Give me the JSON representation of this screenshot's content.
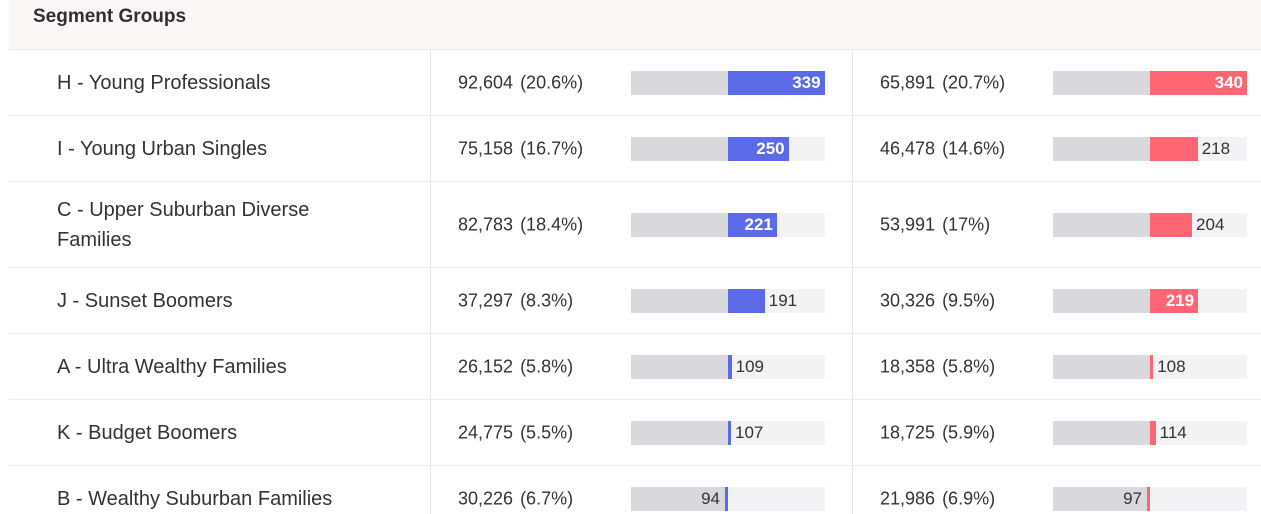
{
  "header": {
    "title": "Segment Groups"
  },
  "colors": {
    "series_a": "#5b6be8",
    "series_b": "#ff6673",
    "track": "#d9d8dc",
    "track_light": "#f3f2f5"
  },
  "index_baseline": 100,
  "index_max": 340,
  "rows": [
    {
      "name": "H - Young Professionals",
      "a_count": "92,604",
      "a_pct": "(20.6%)",
      "a_index": 339,
      "b_count": "65,891",
      "b_pct": "(20.7%)",
      "b_index": 340
    },
    {
      "name": "I - Young Urban Singles",
      "a_count": "75,158",
      "a_pct": "(16.7%)",
      "a_index": 250,
      "b_count": "46,478",
      "b_pct": "(14.6%)",
      "b_index": 218
    },
    {
      "name": "C - Upper Suburban Diverse Families",
      "a_count": "82,783",
      "a_pct": "(18.4%)",
      "a_index": 221,
      "b_count": "53,991",
      "b_pct": "(17%)",
      "b_index": 204
    },
    {
      "name": "J - Sunset Boomers",
      "a_count": "37,297",
      "a_pct": "(8.3%)",
      "a_index": 191,
      "b_count": "30,326",
      "b_pct": "(9.5%)",
      "b_index": 219
    },
    {
      "name": "A - Ultra Wealthy Families",
      "a_count": "26,152",
      "a_pct": "(5.8%)",
      "a_index": 109,
      "b_count": "18,358",
      "b_pct": "(5.8%)",
      "b_index": 108
    },
    {
      "name": "K - Budget Boomers",
      "a_count": "24,775",
      "a_pct": "(5.5%)",
      "a_index": 107,
      "b_count": "18,725",
      "b_pct": "(5.9%)",
      "b_index": 114
    },
    {
      "name": "B - Wealthy Suburban Families",
      "a_count": "30,226",
      "a_pct": "(6.7%)",
      "a_index": 94,
      "b_count": "21,986",
      "b_pct": "(6.9%)",
      "b_index": 97
    }
  ]
}
